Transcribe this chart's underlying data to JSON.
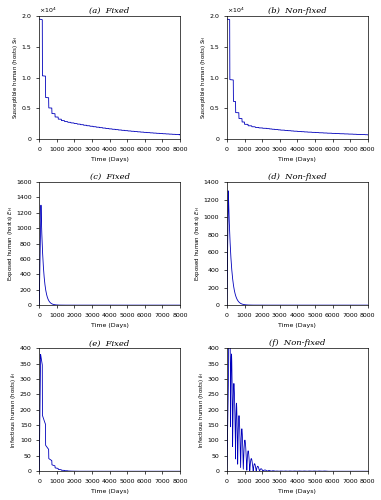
{
  "line_color": "#0000bb",
  "bg_color": "#ffffff",
  "xlim": [
    0,
    8000
  ],
  "xticks": [
    0,
    1000,
    2000,
    3000,
    4000,
    5000,
    6000,
    7000,
    8000
  ],
  "panels": [
    {
      "ylabel": "Susceptible human (hosts) $S_H$",
      "xlabel": "Time (Days)",
      "caption": "(a)  Fixed",
      "ylim_max": 20000,
      "yticks_scaled": [
        0,
        0.5,
        1.0,
        1.5,
        2.0
      ],
      "type": "susceptible_fixed"
    },
    {
      "ylabel": "Susceptible human (hosts) $S_H$",
      "xlabel": "Time (Days)",
      "caption": "(b)  Non-fixed",
      "ylim_max": 20000,
      "yticks_scaled": [
        0,
        0.5,
        1.0,
        1.5,
        2.0
      ],
      "type": "susceptible_nonfixed"
    },
    {
      "ylabel": "Exposed human (hosts) $E_H$",
      "xlabel": "Time (Days)",
      "caption": "(c)  Fixed",
      "ylim_max": 1600,
      "yticks": [
        0,
        200,
        400,
        600,
        800,
        1000,
        1200,
        1400,
        1600
      ],
      "type": "exposed_fixed"
    },
    {
      "ylabel": "Exposed human (hosts) $E_H$",
      "xlabel": "Time (Days)",
      "caption": "(d)  Non-fixed",
      "ylim_max": 1400,
      "yticks": [
        0,
        200,
        400,
        600,
        800,
        1000,
        1200,
        1400
      ],
      "type": "exposed_nonfixed"
    },
    {
      "ylabel": "Infectious human (hosts) $I_H$",
      "xlabel": "Time (Days)",
      "caption": "(e)  Fixed",
      "ylim_max": 400,
      "yticks": [
        0,
        50,
        100,
        150,
        200,
        250,
        300,
        350,
        400
      ],
      "type": "infectious_fixed"
    },
    {
      "ylabel": "Infectious human (hosts) $I_H$",
      "xlabel": "Time (Days)",
      "caption": "(f)  Non-fixed",
      "ylim_max": 400,
      "yticks": [
        0,
        50,
        100,
        150,
        200,
        250,
        300,
        350,
        400
      ],
      "type": "infectious_nonfixed"
    }
  ]
}
